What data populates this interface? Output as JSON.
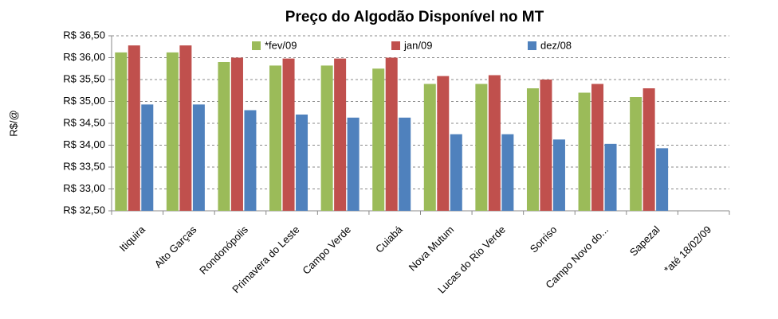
{
  "chart_data": {
    "type": "bar",
    "title": "Preço do Algodão Disponível no MT",
    "y_label": "R$/@",
    "categories": [
      "Itiquira",
      "Alto Garças",
      "Rondonópolis",
      "Primavera do Leste",
      "Campo Verde",
      "Cuiabá",
      "Nova Mutum",
      "Lucas do Rio Verde",
      "Sorriso",
      "Campo Novo do...",
      "Sapezal",
      "*até 18/02/09"
    ],
    "series": [
      {
        "name": "*fev/09",
        "color": "#9bbb59",
        "values": [
          36.12,
          36.12,
          35.9,
          35.82,
          35.82,
          35.75,
          35.4,
          35.4,
          35.3,
          35.2,
          35.1,
          null
        ]
      },
      {
        "name": "jan/09",
        "color": "#c0504d",
        "values": [
          36.28,
          36.28,
          36.0,
          35.98,
          35.98,
          36.0,
          35.58,
          35.6,
          35.5,
          35.4,
          35.3,
          null
        ]
      },
      {
        "name": "dez/08",
        "color": "#4f81bd",
        "values": [
          34.93,
          34.93,
          34.8,
          34.7,
          34.63,
          34.63,
          34.25,
          34.25,
          34.13,
          34.03,
          33.93,
          null
        ]
      }
    ],
    "ylim": [
      32.5,
      36.5
    ],
    "yticks": [
      {
        "value": 32.5,
        "label": "R$ 32,50"
      },
      {
        "value": 33.0,
        "label": "R$ 33,00"
      },
      {
        "value": 33.5,
        "label": "R$ 33,50"
      },
      {
        "value": 34.0,
        "label": "R$ 34,00"
      },
      {
        "value": 34.5,
        "label": "R$ 34,50"
      },
      {
        "value": 35.0,
        "label": "R$ 35,00"
      },
      {
        "value": 35.5,
        "label": "R$ 35,50"
      },
      {
        "value": 36.0,
        "label": "R$ 36,00"
      },
      {
        "value": 36.5,
        "label": "R$ 36,50"
      }
    ],
    "grid": true,
    "legend": "top"
  }
}
